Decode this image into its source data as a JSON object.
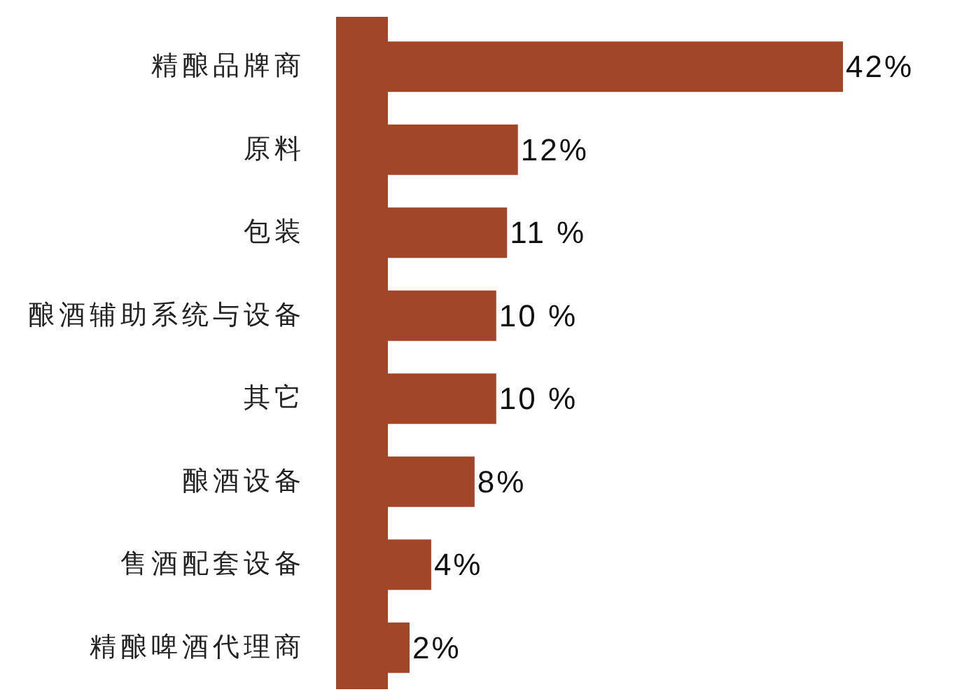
{
  "chart_data": {
    "type": "bar",
    "orientation": "horizontal",
    "categories": [
      "精酿品牌商",
      "原料",
      "包装",
      "酿酒辅助系统与设备",
      "其它",
      "酿酒设备",
      "售酒配套设备",
      "精酿啤酒代理商"
    ],
    "values": [
      42,
      12,
      11,
      10,
      10,
      8,
      4,
      2
    ],
    "value_labels": [
      "42%",
      "12%",
      "11 %",
      "10 %",
      "10 %",
      "8%",
      "4%",
      "2%"
    ],
    "color": "#a2462a"
  }
}
